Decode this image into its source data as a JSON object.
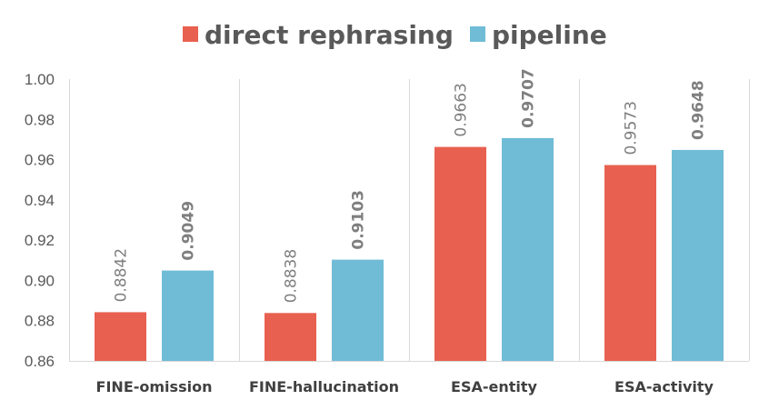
{
  "chart_data": {
    "type": "bar",
    "categories": [
      "FINE-omission",
      "FINE-hallucination",
      "ESA-entity",
      "ESA-activity"
    ],
    "series": [
      {
        "name": "direct rephrasing",
        "color": "#e8604f",
        "values": [
          0.8842,
          0.8838,
          0.9663,
          0.9573
        ],
        "labels": [
          "0.8842",
          "0.8838",
          "0.9663",
          "0.9573"
        ],
        "label_bold": false
      },
      {
        "name": "pipeline",
        "color": "#70bcd6",
        "values": [
          0.9049,
          0.9103,
          0.9707,
          0.9648
        ],
        "labels": [
          "0.9049",
          "0.9103",
          "0.9707",
          "0.9648"
        ],
        "label_bold": true
      }
    ],
    "ylim": [
      0.86,
      1.0
    ],
    "yticks": [
      0.86,
      0.88,
      0.9,
      0.92,
      0.94,
      0.96,
      0.98,
      1.0
    ],
    "ytick_labels": [
      "0.86",
      "0.88",
      "0.90",
      "0.92",
      "0.94",
      "0.96",
      "0.98",
      "1.00"
    ],
    "legend_position": "top-center",
    "grid": "vertical separators",
    "data_label_orientation": "vertical"
  }
}
